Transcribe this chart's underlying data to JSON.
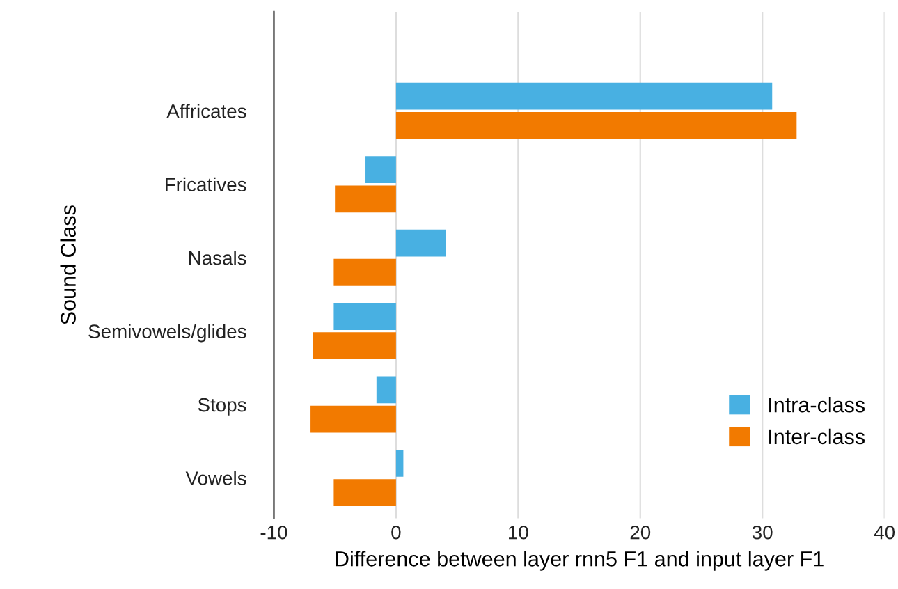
{
  "chart_data": {
    "type": "bar",
    "orientation": "horizontal",
    "categories": [
      "Affricates",
      "Fricatives",
      "Nasals",
      "Semivowels/glides",
      "Stops",
      "Vowels"
    ],
    "series": [
      {
        "name": "Intra-class",
        "color": "#48b0e2",
        "values": [
          30.8,
          -2.5,
          4.1,
          -5.1,
          -1.6,
          0.6
        ]
      },
      {
        "name": "Inter-class",
        "color": "#f27a00",
        "values": [
          32.8,
          -5.0,
          -5.1,
          -6.8,
          -7.0,
          -5.1
        ]
      }
    ],
    "xlabel": "Difference between layer rnn5 F1 and input layer F1",
    "ylabel": "Sound Class",
    "xlim": [
      -10,
      40
    ],
    "xticks": [
      -10,
      0,
      10,
      20,
      30,
      40
    ],
    "grid": "x",
    "legend": "bottom right"
  }
}
